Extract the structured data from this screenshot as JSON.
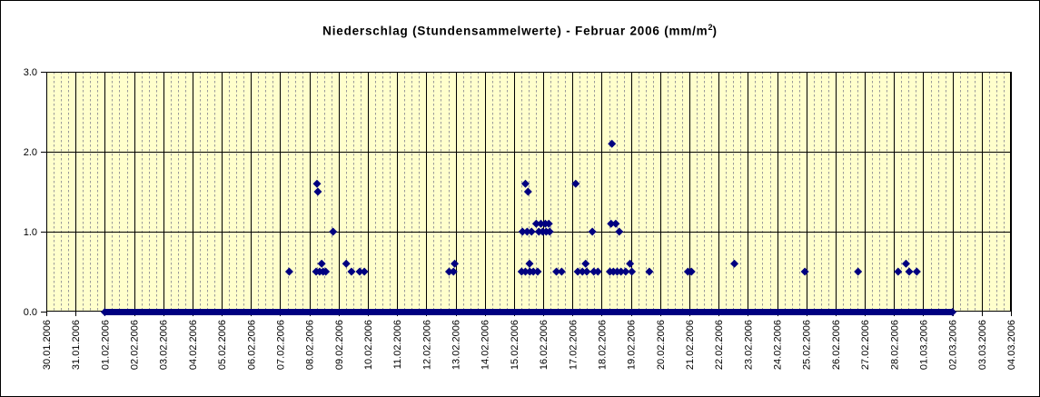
{
  "chart_data": {
    "type": "scatter",
    "title": {
      "text": "Niederschlag (Stundensammelwerte) - Februar 2006 (mm/m",
      "sup": "2",
      "suffix": ")"
    },
    "ylabel": "",
    "xlabel": "",
    "ylim": [
      0,
      3
    ],
    "yticks": [
      {
        "label": "0.0",
        "value": 0
      },
      {
        "label": "1.0",
        "value": 1
      },
      {
        "label": "2.0",
        "value": 2
      },
      {
        "label": "3.0",
        "value": 3
      }
    ],
    "x_axis": {
      "tick_labels": [
        "30.01.2006",
        "31.01.2006",
        "01.02.2006",
        "02.02.2006",
        "03.02.2006",
        "04.02.2006",
        "05.02.2006",
        "06.02.2006",
        "07.02.2006",
        "08.02.2006",
        "09.02.2006",
        "10.02.2006",
        "11.02.2006",
        "12.02.2006",
        "13.02.2006",
        "14.02.2006",
        "15.02.2006",
        "16.02.2006",
        "17.02.2006",
        "18.02.2006",
        "19.02.2006",
        "20.02.2006",
        "21.02.2006",
        "22.02.2006",
        "23.02.2006",
        "24.02.2006",
        "25.02.2006",
        "26.02.2006",
        "27.02.2006",
        "28.02.2006",
        "01.03.2006",
        "02.03.2006",
        "03.03.2006",
        "04.03.2006"
      ],
      "subdivisions_per_day": 4
    },
    "grid": {
      "vertical_solid_per_day": true,
      "vertical_dashed_6h": true,
      "horizontal_at": [
        1,
        2
      ]
    },
    "legend": {
      "visible": false
    },
    "points_unit_x": "days_since_30.01.2006_00:00",
    "points": [
      [
        8.31,
        0.5
      ],
      [
        9.23,
        0.5
      ],
      [
        9.26,
        1.6
      ],
      [
        9.29,
        1.5
      ],
      [
        9.35,
        0.5
      ],
      [
        9.42,
        0.6
      ],
      [
        9.47,
        0.5
      ],
      [
        9.56,
        0.5
      ],
      [
        9.81,
        1.0
      ],
      [
        10.26,
        0.6
      ],
      [
        10.44,
        0.5
      ],
      [
        10.72,
        0.5
      ],
      [
        10.88,
        0.5
      ],
      [
        13.78,
        0.5
      ],
      [
        13.93,
        0.5
      ],
      [
        13.97,
        0.6
      ],
      [
        16.26,
        0.5
      ],
      [
        16.29,
        1.0
      ],
      [
        16.39,
        1.6
      ],
      [
        16.39,
        0.5
      ],
      [
        16.45,
        1.0
      ],
      [
        16.48,
        1.5
      ],
      [
        16.53,
        0.6
      ],
      [
        16.54,
        0.5
      ],
      [
        16.6,
        1.0
      ],
      [
        16.66,
        0.5
      ],
      [
        16.76,
        1.1
      ],
      [
        16.81,
        0.5
      ],
      [
        16.85,
        1.0
      ],
      [
        16.92,
        1.1
      ],
      [
        16.98,
        1.0
      ],
      [
        17.07,
        1.1
      ],
      [
        17.1,
        1.0
      ],
      [
        17.19,
        1.1
      ],
      [
        17.22,
        1.0
      ],
      [
        17.45,
        0.5
      ],
      [
        17.63,
        0.5
      ],
      [
        18.11,
        1.6
      ],
      [
        18.18,
        0.5
      ],
      [
        18.34,
        0.5
      ],
      [
        18.45,
        0.6
      ],
      [
        18.49,
        0.5
      ],
      [
        18.68,
        1.0
      ],
      [
        18.73,
        0.5
      ],
      [
        18.87,
        0.5
      ],
      [
        19.28,
        0.5
      ],
      [
        19.32,
        1.1
      ],
      [
        19.35,
        2.1
      ],
      [
        19.4,
        0.5
      ],
      [
        19.48,
        1.1
      ],
      [
        19.53,
        0.5
      ],
      [
        19.6,
        1.0
      ],
      [
        19.66,
        0.5
      ],
      [
        19.82,
        0.5
      ],
      [
        19.97,
        0.6
      ],
      [
        20.03,
        0.5
      ],
      [
        20.63,
        0.5
      ],
      [
        21.95,
        0.5
      ],
      [
        22.07,
        0.5
      ],
      [
        23.54,
        0.6
      ],
      [
        25.95,
        0.5
      ],
      [
        27.77,
        0.5
      ],
      [
        29.14,
        0.5
      ],
      [
        29.41,
        0.6
      ],
      [
        29.52,
        0.5
      ],
      [
        29.78,
        0.5
      ]
    ],
    "zero_line": {
      "from_day": 2,
      "to_day": 31,
      "value": 0
    },
    "style": {
      "plot_bg": "#ffffcc",
      "marker_color": "#000080",
      "zero_line_color": "#000080",
      "solid_grid_color": "#000000",
      "dashed_grid_color": "#999999",
      "axis_color": "#000000",
      "frame_bg": "#ffffff"
    }
  }
}
